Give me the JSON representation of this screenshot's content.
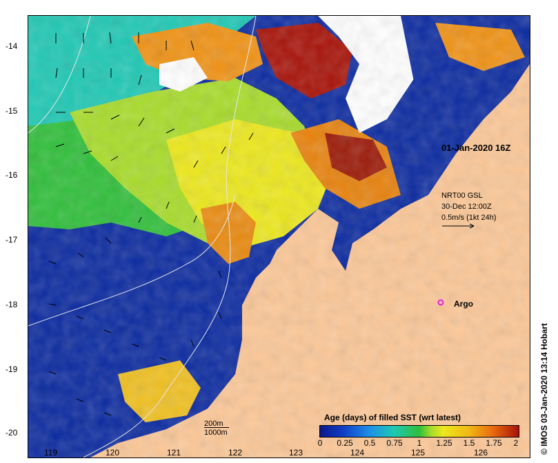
{
  "map": {
    "latitude_labels": [
      "-14",
      "-15",
      "-16",
      "-17",
      "-18",
      "-19",
      "-20"
    ],
    "longitude_labels": [
      "119",
      "120",
      "121",
      "122",
      "123",
      "124",
      "125",
      "126"
    ],
    "date_stamp": "01-Jan-2020 16Z",
    "current_legend": {
      "line1": "NRT00 GSL",
      "line2": "30-Dec 12:00Z",
      "line3": "0.5m/s (1kt 24h)"
    },
    "argo_label": "Argo",
    "side_stamp": "© IMOS 03-Jan-2020 13:14 Hobart",
    "scale": {
      "line1": "200m",
      "line2": "1000m"
    },
    "colorbar": {
      "title": "Age (days) of filled SST (wrt latest)",
      "labels": [
        "0",
        "0.25",
        "0.5",
        "0.75",
        "1",
        "1.25",
        "1.5",
        "1.75",
        "2"
      ]
    },
    "colors": {
      "land": "#fcc797",
      "no_data": "#ffffff",
      "argo": "#e81ee8"
    }
  }
}
